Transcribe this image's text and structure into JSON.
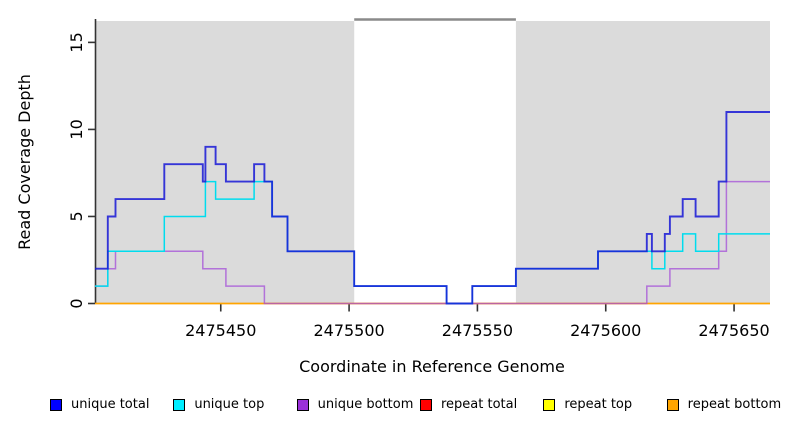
{
  "chart_data": {
    "type": "line",
    "subtype": "step-coverage",
    "title": "",
    "xlabel": "Coordinate in Reference Genome",
    "ylabel": "Read Coverage Depth",
    "xlim": [
      2475401,
      2475664
    ],
    "ylim": [
      0,
      16.2
    ],
    "x_ticks": [
      2475450,
      2475500,
      2475550,
      2475600,
      2475650
    ],
    "y_ticks": [
      0,
      5,
      10,
      15
    ],
    "grid": "off",
    "plot_bg_color": "#DBDBDB",
    "axis_color": "#333333",
    "highlight_band": {
      "x0": 2475502,
      "x1": 2475565,
      "color": "#FFFFFF",
      "top_border_color": "#8A8A8A"
    },
    "series": [
      {
        "name": "repeat total",
        "color": "#FF0000",
        "opacity": 1.0,
        "width": 1.2,
        "points": [
          [
            2475401,
            0
          ],
          [
            2475664,
            0
          ]
        ]
      },
      {
        "name": "repeat top",
        "color": "#FFFF00",
        "opacity": 1.0,
        "width": 1.2,
        "points": [
          [
            2475401,
            0
          ],
          [
            2475664,
            0
          ]
        ]
      },
      {
        "name": "repeat bottom",
        "color": "#FFA500",
        "opacity": 1.0,
        "width": 1.6,
        "points": [
          [
            2475401,
            0
          ],
          [
            2475664,
            0
          ]
        ]
      },
      {
        "name": "unique bottom",
        "color": "#A44FD8",
        "opacity": 0.75,
        "width": 1.5,
        "points": [
          [
            2475401,
            1
          ],
          [
            2475406,
            2
          ],
          [
            2475409,
            3
          ],
          [
            2475443,
            2
          ],
          [
            2475452,
            1
          ],
          [
            2475467,
            0
          ],
          [
            2475616,
            1
          ],
          [
            2475625,
            2
          ],
          [
            2475644,
            3
          ],
          [
            2475647,
            7
          ],
          [
            2475664,
            7
          ]
        ]
      },
      {
        "name": "unique top",
        "color": "#00DCEE",
        "opacity": 1.0,
        "width": 1.5,
        "points": [
          [
            2475401,
            1
          ],
          [
            2475406,
            3
          ],
          [
            2475428,
            5
          ],
          [
            2475444,
            7
          ],
          [
            2475448,
            6
          ],
          [
            2475463,
            7
          ],
          [
            2475470,
            5
          ],
          [
            2475476,
            3
          ],
          [
            2475502,
            1
          ],
          [
            2475538,
            0
          ],
          [
            2475548,
            1
          ],
          [
            2475565,
            2
          ],
          [
            2475597,
            3
          ],
          [
            2475618,
            2
          ],
          [
            2475623,
            3
          ],
          [
            2475630,
            4
          ],
          [
            2475635,
            3
          ],
          [
            2475644,
            4
          ],
          [
            2475664,
            4
          ]
        ]
      },
      {
        "name": "unique total",
        "color": "#1717D6",
        "opacity": 0.85,
        "width": 1.9,
        "points": [
          [
            2475401,
            2
          ],
          [
            2475406,
            5
          ],
          [
            2475409,
            6
          ],
          [
            2475428,
            8
          ],
          [
            2475443,
            7
          ],
          [
            2475444,
            9
          ],
          [
            2475448,
            8
          ],
          [
            2475452,
            7
          ],
          [
            2475463,
            8
          ],
          [
            2475467,
            7
          ],
          [
            2475470,
            5
          ],
          [
            2475476,
            3
          ],
          [
            2475502,
            1
          ],
          [
            2475538,
            0
          ],
          [
            2475548,
            1
          ],
          [
            2475565,
            2
          ],
          [
            2475597,
            3
          ],
          [
            2475616,
            4
          ],
          [
            2475618,
            3
          ],
          [
            2475623,
            4
          ],
          [
            2475625,
            5
          ],
          [
            2475630,
            6
          ],
          [
            2475635,
            5
          ],
          [
            2475644,
            7
          ],
          [
            2475647,
            11
          ],
          [
            2475664,
            11
          ]
        ]
      }
    ],
    "legend": [
      {
        "label": "unique total",
        "color": "#0000FF"
      },
      {
        "label": "unique top",
        "color": "#00EEFF"
      },
      {
        "label": "unique bottom",
        "color": "#9B30D9"
      },
      {
        "label": "repeat total",
        "color": "#FF0000"
      },
      {
        "label": "repeat top",
        "color": "#FFFF00"
      },
      {
        "label": "repeat bottom",
        "color": "#FFA500"
      }
    ]
  }
}
